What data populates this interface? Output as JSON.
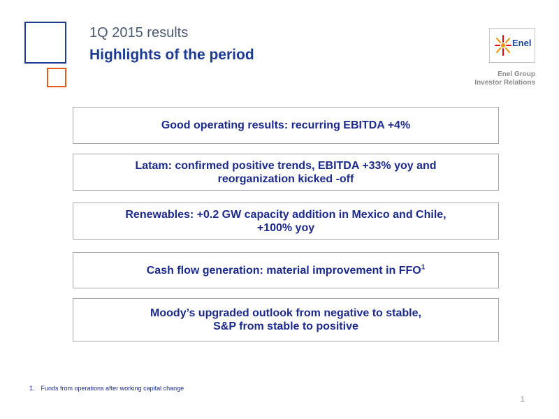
{
  "header": {
    "period": "1Q 2015 results",
    "title": "Highlights of the period"
  },
  "logo": {
    "brand": "Enel",
    "group_label": "Enel Group",
    "dept_label": "Investor Relations"
  },
  "highlights": [
    {
      "text": "Good operating results: recurring EBITDA +4%"
    },
    {
      "line1": "Latam: confirmed positive trends, EBITDA +33% yoy and",
      "line2": "reorganization kicked -off"
    },
    {
      "line1": "Renewables:  +0.2 GW capacity addition in Mexico and Chile,",
      "line2": "+100% yoy"
    },
    {
      "text": "Cash flow generation: material improvement in FFO",
      "sup": "1"
    },
    {
      "line1": "Moody’s upgraded outlook from negative to stable,",
      "line2": "S&P from stable to positive"
    }
  ],
  "footnote": {
    "number": "1.",
    "text": "Funds from operations after working capital change"
  },
  "page_number": "1",
  "colors": {
    "accent_blue": "#1c3a94",
    "accent_orange": "#e25c1e",
    "box_border": "#a7a7a7"
  }
}
